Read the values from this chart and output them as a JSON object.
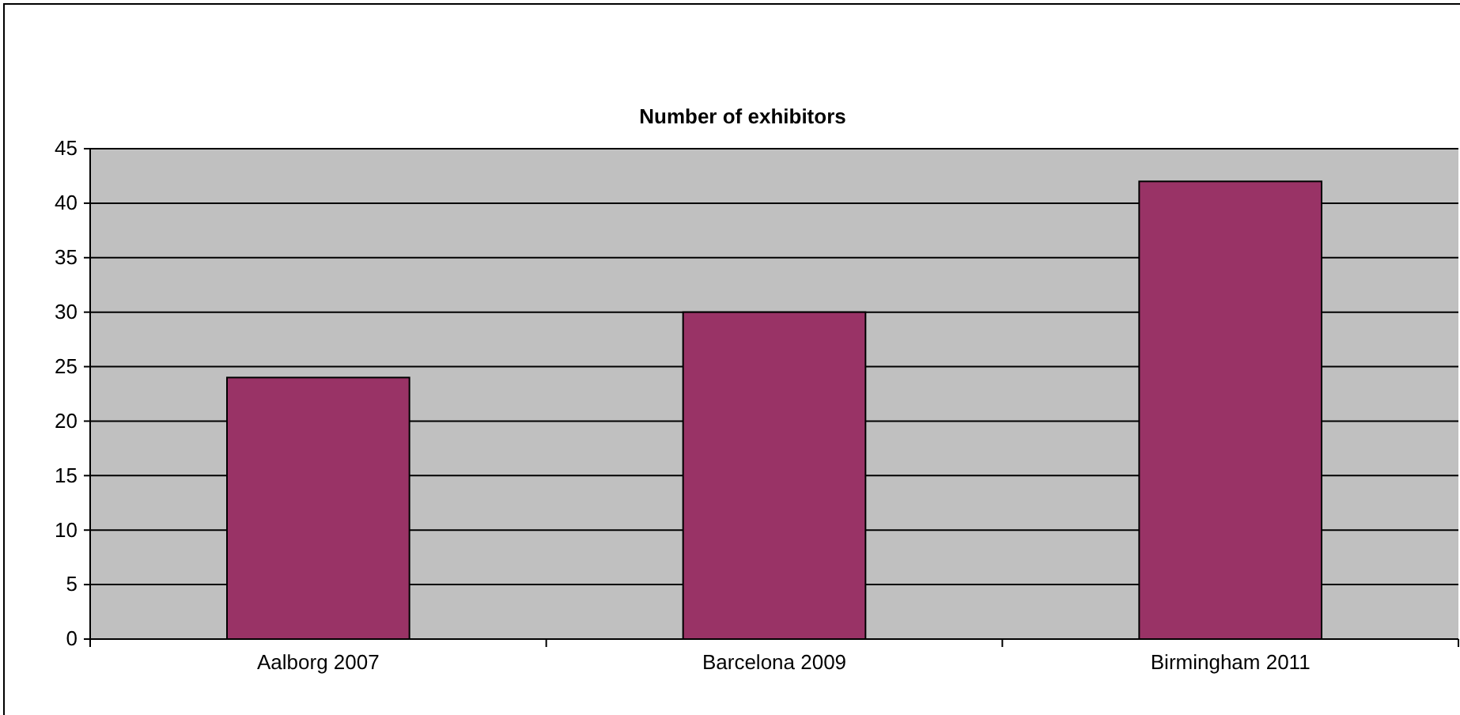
{
  "chart_data": {
    "type": "bar",
    "title": "Number of exhibitors",
    "categories": [
      "Aalborg 2007",
      "Barcelona 2009",
      "Birmingham 2011"
    ],
    "values": [
      24,
      30,
      42
    ],
    "color": "#993366",
    "ylim": [
      0,
      45
    ],
    "yticks": [
      0,
      5,
      10,
      15,
      20,
      25,
      30,
      35,
      40,
      45
    ],
    "grid": "y"
  }
}
